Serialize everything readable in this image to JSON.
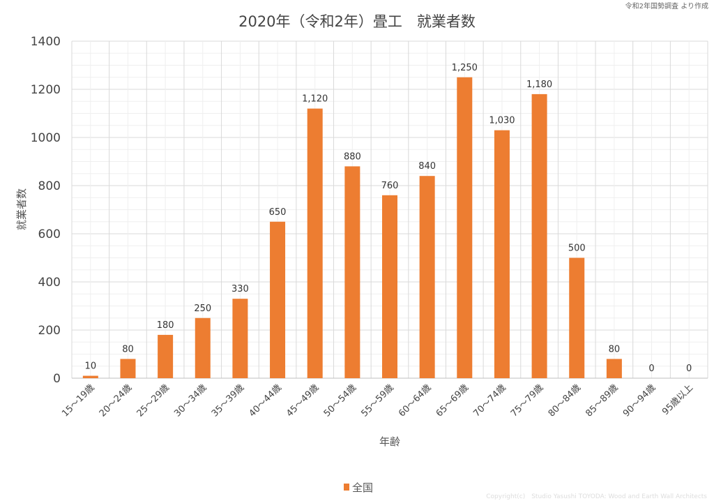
{
  "source_note": "令和2年国勢調査 より作成",
  "copyright": "Copyright(c)　Studio Yasushi TOYODA: Wood and Earth Wall Architects",
  "chart_data": {
    "type": "bar",
    "title": "2020年（令和2年）畳工　就業者数",
    "xlabel": "年齢",
    "ylabel": "就業者数",
    "ylim": [
      0,
      1400
    ],
    "yticks": [
      0,
      200,
      400,
      600,
      800,
      1000,
      1200,
      1400
    ],
    "grid": true,
    "legend_position": "bottom",
    "categories": [
      "15～19歳",
      "20～24歳",
      "25～29歳",
      "30～34歳",
      "35～39歳",
      "40～44歳",
      "45～49歳",
      "50～54歳",
      "55～59歳",
      "60～64歳",
      "65～69歳",
      "70～74歳",
      "75～79歳",
      "80～84歳",
      "85～89歳",
      "90～94歳",
      "95歳以上"
    ],
    "series": [
      {
        "name": "全国",
        "color": "#ED7D31",
        "values": [
          10,
          80,
          180,
          250,
          330,
          650,
          1120,
          880,
          760,
          840,
          1250,
          1030,
          1180,
          500,
          80,
          0,
          0
        ],
        "labels": [
          "10",
          "80",
          "180",
          "250",
          "330",
          "650",
          "1,120",
          "880",
          "760",
          "840",
          "1,250",
          "1,030",
          "1,180",
          "500",
          "80",
          "0",
          "0"
        ]
      }
    ]
  }
}
